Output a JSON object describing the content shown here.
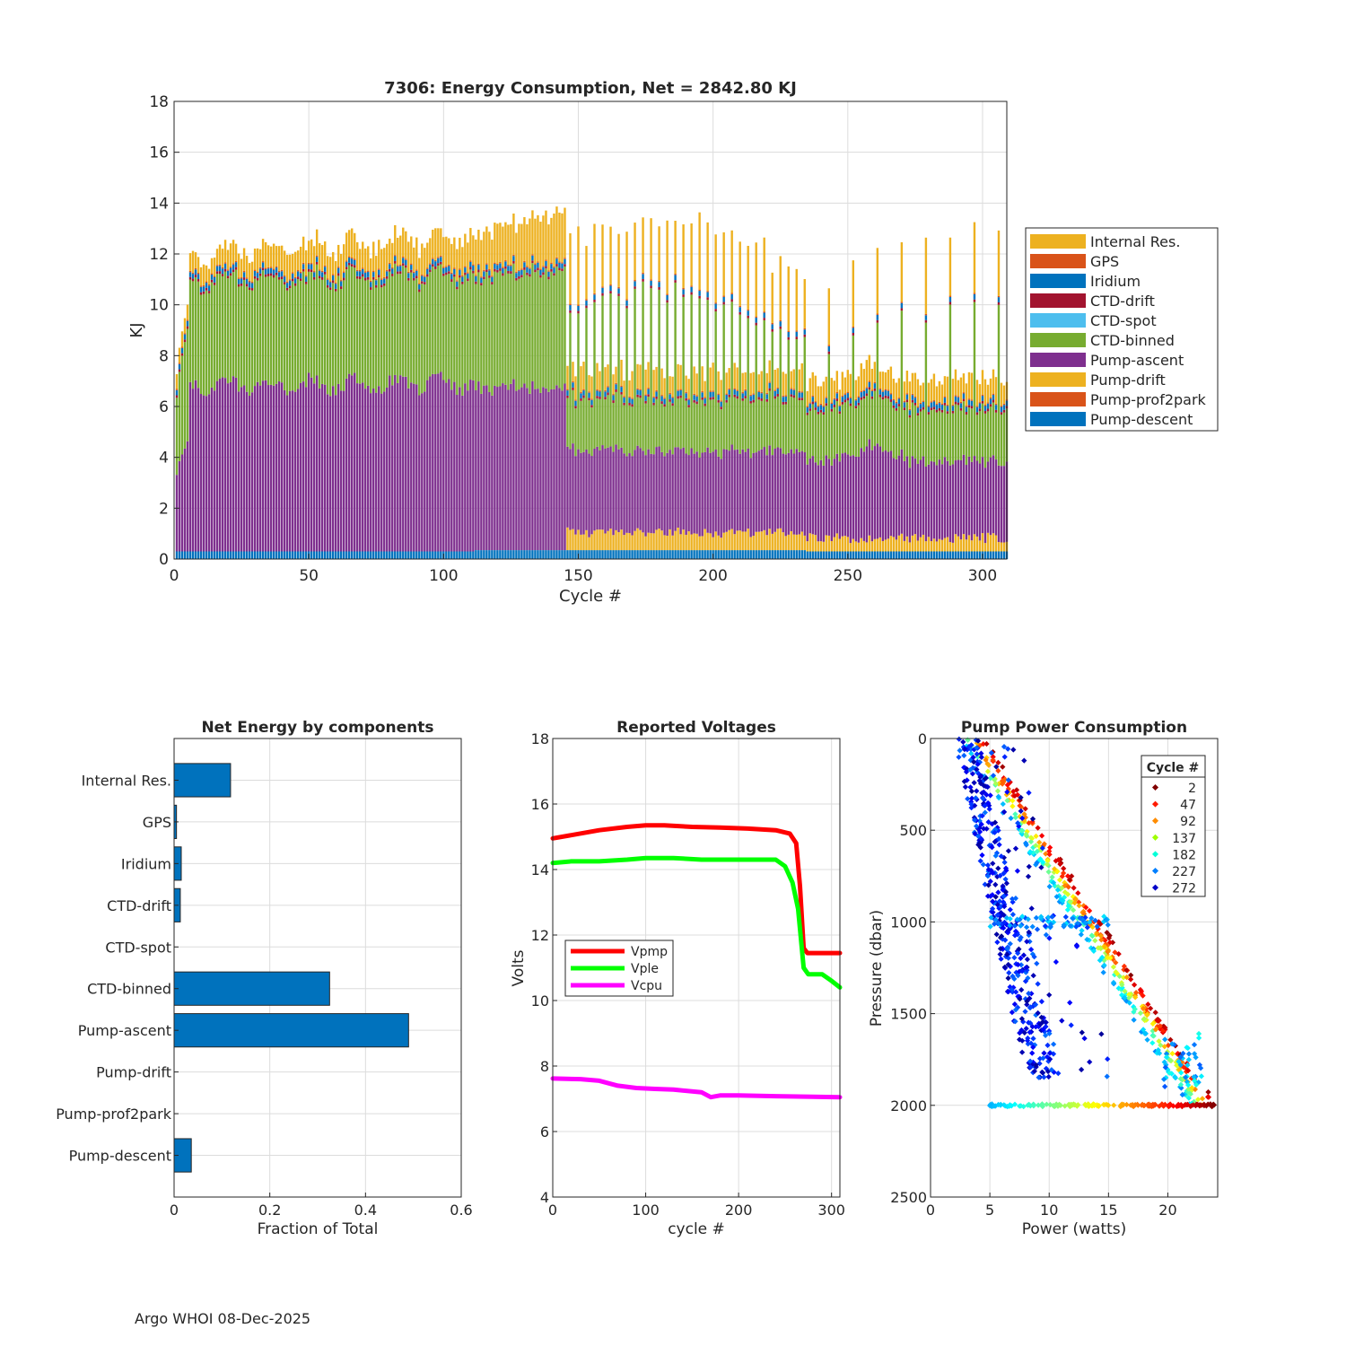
{
  "footer": "Argo WHOI 08-Dec-2025",
  "chart_data": [
    {
      "type": "bar",
      "stacked": true,
      "title": "7306: Energy Consumption,  Net = 2842.80 KJ",
      "xlabel": "Cycle #",
      "ylabel": "KJ",
      "xlim": [
        0,
        309
      ],
      "ylim": [
        0,
        18
      ],
      "xticks": [
        0,
        50,
        100,
        150,
        200,
        250,
        300
      ],
      "yticks": [
        0,
        2,
        4,
        6,
        8,
        10,
        12,
        14,
        16,
        18
      ],
      "grid": true,
      "legend_position": "outside-right",
      "series_order_bottom_to_top": [
        "Pump-descent",
        "Pump-prof2park",
        "Pump-drift",
        "Pump-ascent",
        "CTD-binned",
        "CTD-spot",
        "CTD-drift",
        "Iridium",
        "GPS",
        "Internal Res."
      ],
      "legend": [
        {
          "name": "Internal Res.",
          "color": "#EDB120"
        },
        {
          "name": "GPS",
          "color": "#D95319"
        },
        {
          "name": "Iridium",
          "color": "#0072BD"
        },
        {
          "name": "CTD-drift",
          "color": "#A2142F"
        },
        {
          "name": "CTD-spot",
          "color": "#4DBEEE"
        },
        {
          "name": "CTD-binned",
          "color": "#77AC30"
        },
        {
          "name": "Pump-ascent",
          "color": "#7E2F8E"
        },
        {
          "name": "Pump-drift",
          "color": "#EDB120"
        },
        {
          "name": "Pump-prof2park",
          "color": "#D95319"
        },
        {
          "name": "Pump-descent",
          "color": "#0072BD"
        }
      ],
      "segments_approx_KJ": [
        {
          "cycles": [
            1,
            5
          ],
          "Pump-descent": 0.3,
          "Pump-ascent": 4.5,
          "CTD-binned": 4.6,
          "CTD-spot": 0.0,
          "CTD-drift": 0.1,
          "Iridium": 0.2,
          "GPS": 0.05,
          "Internal Res.": 0.6
        },
        {
          "cycles": [
            6,
            111
          ],
          "Pump-descent": 0.3,
          "Pump-ascent": 6.5,
          "CTD-binned": 4.1,
          "CTD-spot": 0.0,
          "CTD-drift": 0.1,
          "Iridium": 0.2,
          "GPS": 0.05,
          "Internal Res.": 0.9
        },
        {
          "cycles": [
            112,
            145
          ],
          "Pump-descent": 0.35,
          "Pump-ascent": 6.5,
          "CTD-binned": 4.4,
          "CTD-spot": 0.0,
          "CTD-drift": 0.1,
          "Iridium": 0.2,
          "GPS": 0.05,
          "Internal Res.": 1.6
        },
        {
          "cycles": [
            146,
            234
          ],
          "Pump-descent": 0.35,
          "Pump-ascent": 3.3,
          "Pump-drift": 0.8,
          "CTD-binned": 6.5,
          "CTD-spot": 0.0,
          "CTD-drift": 0.1,
          "Iridium": 0.2,
          "GPS": 0.05,
          "Internal Res.": 2.5,
          "note": "odd cycles reduced"
        },
        {
          "cycles": [
            235,
            309
          ],
          "Pump-descent": 0.3,
          "Pump-ascent": 3.2,
          "Pump-drift": 0.6,
          "CTD-binned": 6.3,
          "CTD-spot": 0.0,
          "CTD-drift": 0.1,
          "Iridium": 0.2,
          "GPS": 0.05,
          "Internal Res.": 2.3,
          "note": "sparse full cycles"
        }
      ]
    },
    {
      "type": "bar",
      "orientation": "horizontal",
      "title": "Net Energy by components",
      "xlabel": "Fraction of Total",
      "xlim": [
        0,
        0.6
      ],
      "xticks": [
        0,
        0.2,
        0.4,
        0.6
      ],
      "xtick_labels": [
        "0",
        "0.2",
        "0.4",
        "0.6"
      ],
      "categories": [
        "Internal Res.",
        "GPS",
        "Iridium",
        "CTD-drift",
        "CTD-spot",
        "CTD-binned",
        "Pump-ascent",
        "Pump-drift",
        "Pump-prof2park",
        "Pump-descent"
      ],
      "values": [
        0.118,
        0.005,
        0.015,
        0.013,
        0.0,
        0.325,
        0.49,
        0.0,
        0.0,
        0.036
      ],
      "color": "#0072BD",
      "grid": true
    },
    {
      "type": "line",
      "title": "Reported Voltages",
      "xlabel": "cycle #",
      "ylabel": "Volts",
      "xlim": [
        0,
        309
      ],
      "ylim": [
        4,
        18
      ],
      "xticks": [
        0,
        100,
        200,
        300
      ],
      "yticks": [
        4,
        6,
        8,
        10,
        12,
        14,
        16,
        18
      ],
      "grid": true,
      "legend_position": "middle-left",
      "series": [
        {
          "name": "Vpmp",
          "color": "#FF0000",
          "x": [
            0,
            20,
            50,
            80,
            100,
            120,
            150,
            180,
            210,
            240,
            255,
            262,
            266,
            270,
            274,
            300,
            309
          ],
          "y": [
            14.95,
            15.05,
            15.2,
            15.3,
            15.35,
            15.35,
            15.3,
            15.28,
            15.25,
            15.2,
            15.1,
            14.8,
            13.5,
            11.6,
            11.45,
            11.45,
            11.45
          ]
        },
        {
          "name": "Vple",
          "color": "#00FF00",
          "x": [
            0,
            20,
            50,
            80,
            100,
            130,
            160,
            190,
            220,
            240,
            250,
            258,
            264,
            270,
            275,
            290,
            300,
            309
          ],
          "y": [
            14.2,
            14.25,
            14.25,
            14.3,
            14.35,
            14.35,
            14.3,
            14.3,
            14.3,
            14.3,
            14.1,
            13.6,
            12.8,
            11.0,
            10.8,
            10.8,
            10.6,
            10.4
          ]
        },
        {
          "name": "Vcpu",
          "color": "#FF00FF",
          "x": [
            0,
            30,
            50,
            70,
            90,
            110,
            130,
            160,
            170,
            180,
            200,
            240,
            280,
            309
          ],
          "y": [
            7.62,
            7.6,
            7.55,
            7.4,
            7.33,
            7.3,
            7.28,
            7.2,
            7.05,
            7.1,
            7.1,
            7.08,
            7.06,
            7.05
          ]
        }
      ]
    },
    {
      "type": "scatter",
      "title": "Pump Power Consumption",
      "xlabel": "Power (watts)",
      "ylabel": "Pressure (dbar)",
      "xlim": [
        0,
        24.2
      ],
      "ylim": [
        0,
        2500
      ],
      "y_reversed": true,
      "xticks": [
        0,
        5,
        10,
        15,
        20
      ],
      "yticks": [
        0,
        500,
        1000,
        1500,
        2000,
        2500
      ],
      "grid": true,
      "legend_title": "Cycle #",
      "legend": [
        {
          "name": "2",
          "color": "#800000"
        },
        {
          "name": "47",
          "color": "#FF1A00"
        },
        {
          "name": "92",
          "color": "#FF8C00"
        },
        {
          "name": "137",
          "color": "#9FFF00"
        },
        {
          "name": "182",
          "color": "#00FFD8"
        },
        {
          "name": "227",
          "color": "#007FFF"
        },
        {
          "name": "272",
          "color": "#0000C8"
        }
      ],
      "features": {
        "main_line": {
          "from": {
            "power": 4.5,
            "pressure": 0
          },
          "to": {
            "power": 24.0,
            "pressure": 2000
          }
        },
        "park_line": {
          "pressure": 2000,
          "power_range": [
            5.0,
            24.0
          ]
        },
        "late_cycle_scatter": {
          "power_range": [
            2.0,
            15.0
          ],
          "pressure_range": [
            0,
            1850
          ]
        }
      }
    }
  ]
}
